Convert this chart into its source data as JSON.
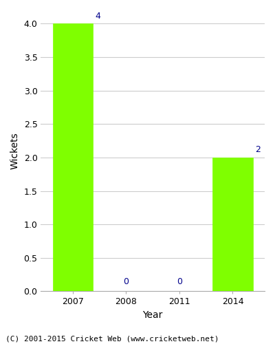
{
  "years": [
    "2007",
    "2008",
    "2011",
    "2014"
  ],
  "values": [
    4,
    0,
    0,
    2
  ],
  "bar_color": "#7fff00",
  "bar_edgecolor": "#7fff00",
  "title": "",
  "xlabel": "Year",
  "ylabel": "Wickets",
  "ylim": [
    0,
    4.2
  ],
  "yticks": [
    0.0,
    0.5,
    1.0,
    1.5,
    2.0,
    2.5,
    3.0,
    3.5,
    4.0
  ],
  "annotation_color": "#00008b",
  "annotation_fontsize": 9,
  "axis_label_fontsize": 10,
  "tick_fontsize": 9,
  "footer_text": "(C) 2001-2015 Cricket Web (www.cricketweb.net)",
  "footer_fontsize": 8,
  "background_color": "#ffffff",
  "grid_color": "#cccccc",
  "bar_width": 0.75
}
